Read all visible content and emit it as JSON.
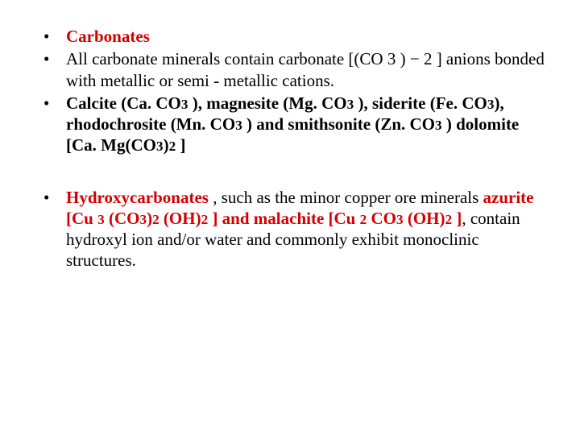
{
  "colors": {
    "text": "#000000",
    "accent_red": "#d40000",
    "background": "#ffffff"
  },
  "typography": {
    "family": "Times New Roman",
    "size_pt": 16,
    "subscript_scale": 0.82
  },
  "bullets": {
    "b1": {
      "t1": "Carbonates"
    },
    "b2": {
      "t1": "All carbonate minerals contain carbonate [(CO 3 ) ",
      "t2": "−",
      "t3": " 2 ] anions bonded with metallic or semi - metallic cations."
    },
    "b3": {
      "t1": "Calcite (Ca. CO",
      "s1": "3",
      "t2": " ), magnesite (Mg. CO",
      "s2": "3",
      "t3": " ), siderite (Fe. CO",
      "s3": "3",
      "t4": "), rhodochrosite (Mn. CO",
      "s4": "3",
      "t5": " ) and smithsonite (Zn. CO",
      "s5": "3",
      "t6": " ) dolomite [Ca. Mg(CO",
      "s6": "3",
      "t7": ")",
      "s7": "2",
      "t8": " ]"
    },
    "b4": {
      "t1": "Hydroxycarbonates ",
      "t2": ", such as the minor copper ore minerals ",
      "t3": "azurite [Cu ",
      "s1": "3",
      "t4": " (CO",
      "s2": "3",
      "t5": ")",
      "s3": "2",
      "t6": " (OH)",
      "s4": "2",
      "t7": " ] and malachite [Cu ",
      "s5": "2",
      "t8": " CO",
      "s6": "3",
      "t9": " (OH)",
      "s7": "2",
      "t10": " ]",
      "t11": ", contain hydroxyl ion and/or water and commonly exhibit monoclinic structures."
    }
  }
}
